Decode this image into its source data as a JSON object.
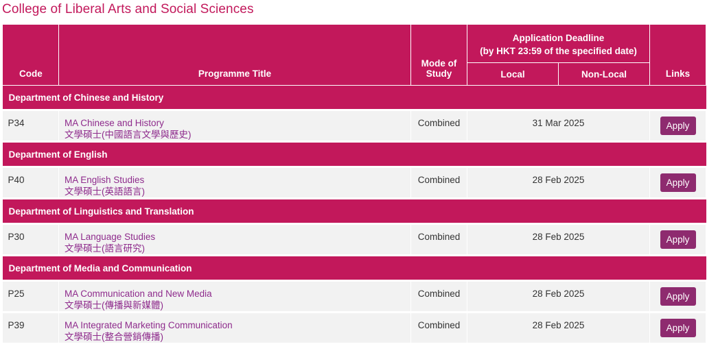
{
  "page": {
    "title": "College of Liberal Arts and Social Sciences"
  },
  "table": {
    "headers": {
      "code": "Code",
      "programme_title": "Programme Title",
      "mode_of_study": "Mode of Study",
      "deadline_line1": "Application Deadline",
      "deadline_line2": "(by HKT 23:59 of the specified date)",
      "local": "Local",
      "non_local": "Non-Local",
      "links": "Links"
    },
    "departments": [
      {
        "name": "Department of Chinese and History",
        "programmes": [
          {
            "code": "P34",
            "title_en": "MA Chinese and History",
            "title_zh": "文學碩士(中國語言文學與歷史)",
            "mode": "Combined",
            "deadline": "31 Mar 2025",
            "link_label": "Apply"
          }
        ]
      },
      {
        "name": "Department of English",
        "programmes": [
          {
            "code": "P40",
            "title_en": "MA English Studies",
            "title_zh": "文學碩士(英語語言)",
            "mode": "Combined",
            "deadline": "28 Feb 2025",
            "link_label": "Apply"
          }
        ]
      },
      {
        "name": "Department of Linguistics and Translation",
        "programmes": [
          {
            "code": "P30",
            "title_en": "MA Language Studies",
            "title_zh": "文學碩士(語言研究)",
            "mode": "Combined",
            "deadline": "28 Feb 2025",
            "link_label": "Apply"
          }
        ]
      },
      {
        "name": "Department of Media and Communication",
        "programmes": [
          {
            "code": "P25",
            "title_en": "MA Communication and New Media",
            "title_zh": "文學碩士(傳播與新媒體)",
            "mode": "Combined",
            "deadline": "28 Feb 2025",
            "link_label": "Apply"
          },
          {
            "code": "P39",
            "title_en": "MA Integrated Marketing Communication",
            "title_zh": "文學碩士(整合營銷傳播)",
            "mode": "Combined",
            "deadline": "28 Feb 2025",
            "link_label": "Apply"
          }
        ]
      }
    ]
  },
  "colors": {
    "header_bg": "#c2185b",
    "link_text": "#8e2b8c",
    "apply_button": "#8e2b6f",
    "row_bg": "#f2f2f2"
  }
}
